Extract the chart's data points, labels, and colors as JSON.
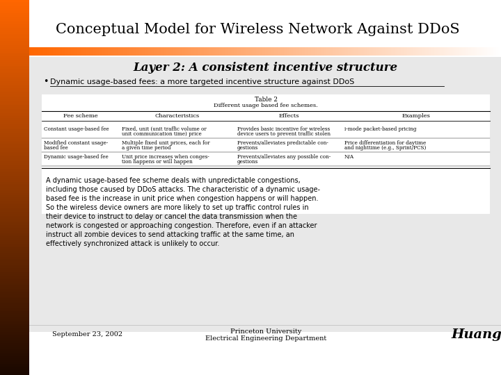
{
  "title_display": "Conceptual Model for Wireless Network Against DDoS",
  "layer_heading": "Layer 2: A consistent incentive structure",
  "bullet": "Dynamic usage-based fees: a more targeted incentive structure against DDoS",
  "table_title": "Table 2",
  "table_subtitle": "Different usage based fee schemes.",
  "table_headers": [
    "Fee scheme",
    "Characteristics",
    "Effects",
    "Examples"
  ],
  "table_rows": [
    [
      "Constant usage-based fee",
      "Fixed, unit (unit traffic volume or\nunit communication time) price",
      "Provides basic incentive for wireless\ndevice users to prevent traffic stolen",
      "i-mode packet-based pricing"
    ],
    [
      "Modified constant usage-\nbased fee",
      "Multiple fixed unit prices, each for\na given time period",
      "Prevents/alleviates predictable con-\ngestions",
      "Price differentiation for daytime\nand nighttime (e.g., Sprint/PCS)"
    ],
    [
      "Dynamic usage-based fee",
      "Unit price increases when conges-\ntion happens or will happen",
      "Prevents/alleviates any possible con-\ngestions",
      "N/A"
    ]
  ],
  "body_text": "A dynamic usage-based fee scheme deals with unpredictable congestions,\nincluding those caused by DDoS attacks. The characteristic of a dynamic usage-\nbased fee is the increase in unit price when congestion happens or will happen.\nSo the wireless device owners are more likely to set up traffic control rules in\ntheir device to instruct to delay or cancel the data transmission when the\nnetwork is congested or approaching congestion. Therefore, even if an attacker\ninstruct all zombie devices to send attacking traffic at the same time, an\neffectively synchronized attack is unlikely to occur.",
  "footer_left": "September 23, 2002",
  "footer_center1": "Princeton University",
  "footer_center2": "Electrical Engineering Department",
  "footer_right": "Huang",
  "sidebar_top": "#FF6600",
  "sidebar_bottom": "#1a0800",
  "bg_color": "#ffffff"
}
